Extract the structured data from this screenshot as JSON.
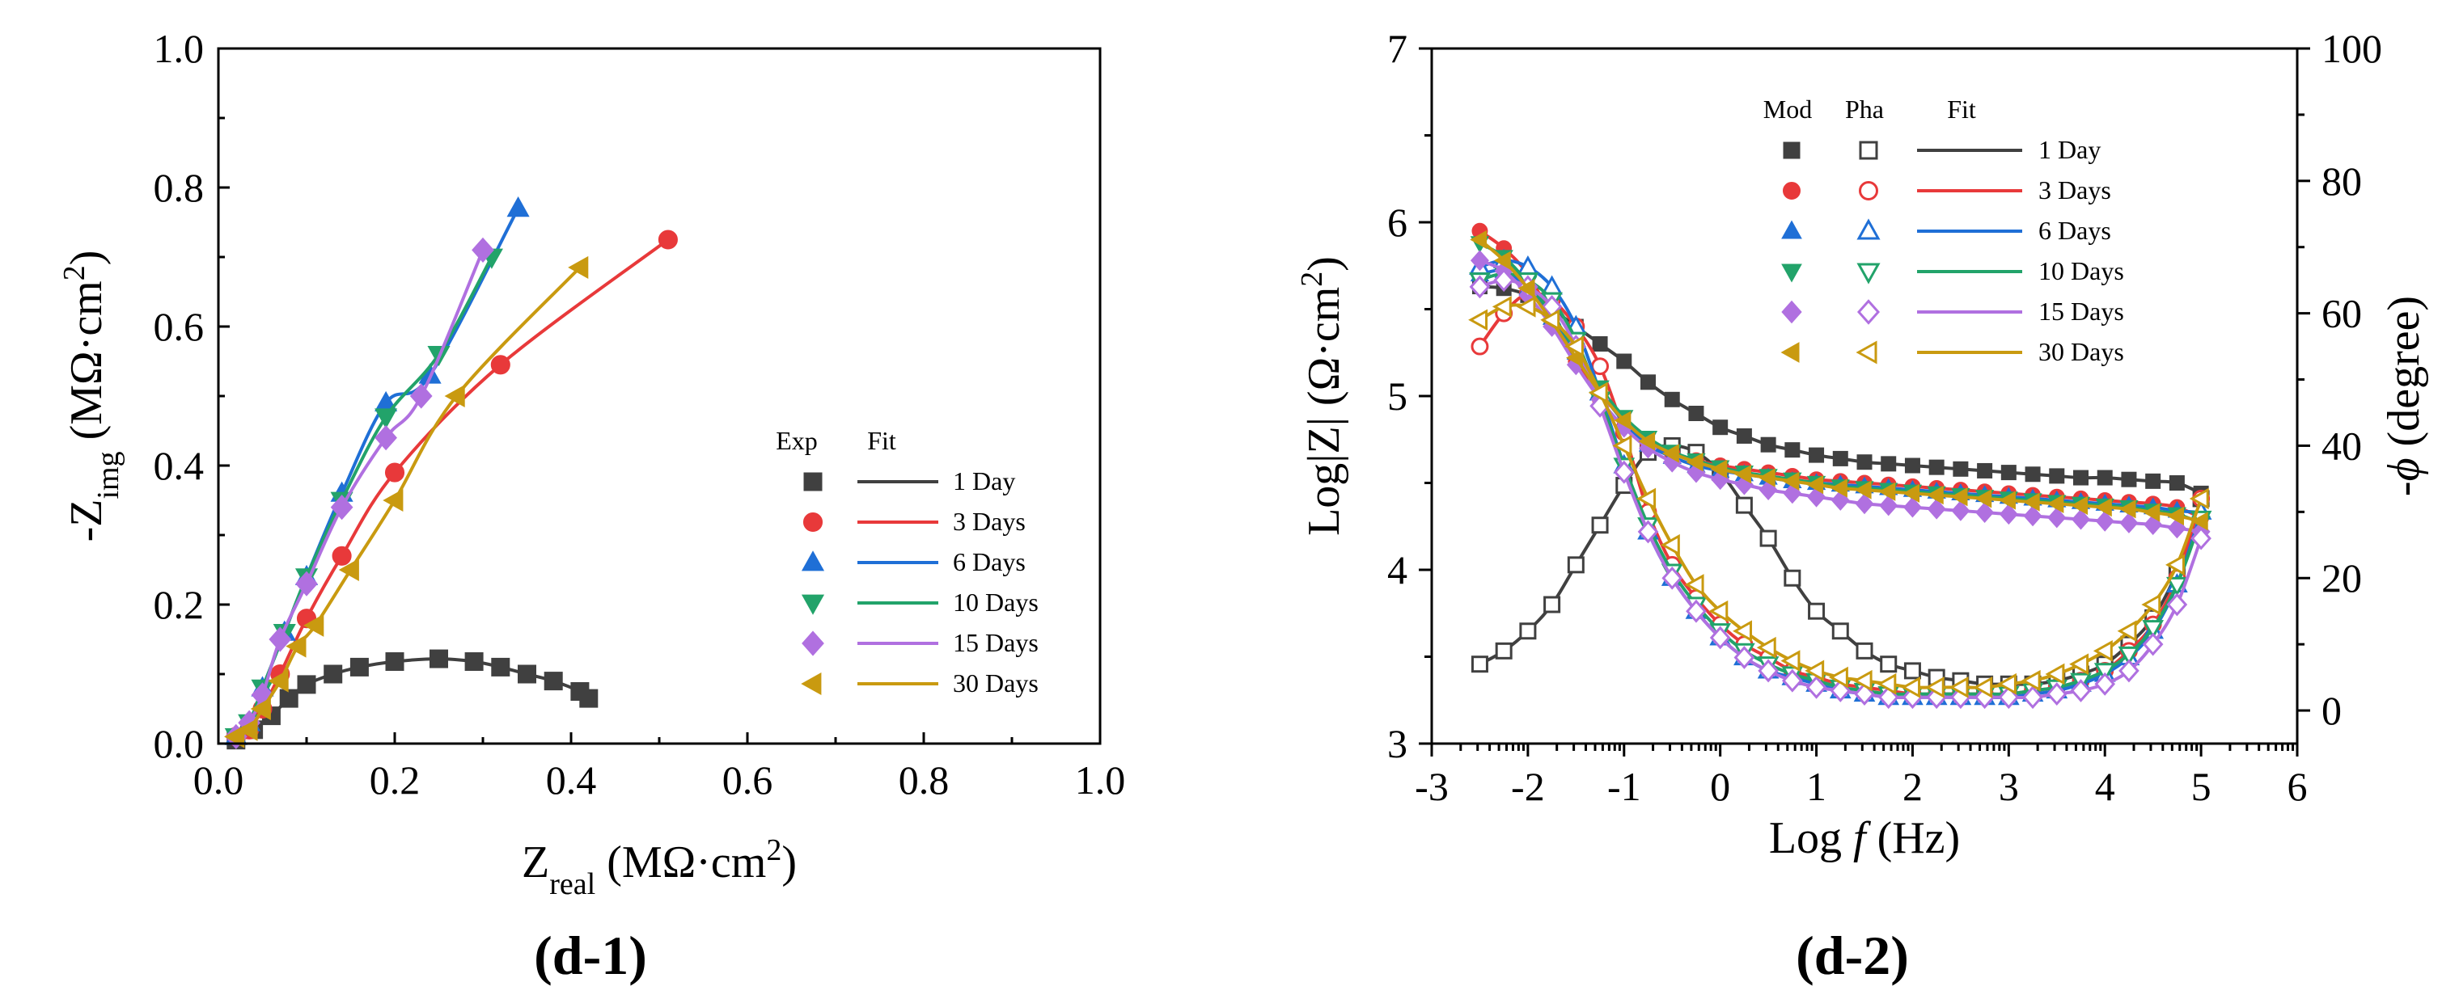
{
  "colors": {
    "d1": "#404040",
    "d3": "#e8393a",
    "d6": "#1f6fd6",
    "d10": "#22a36a",
    "d15": "#b070e0",
    "d30": "#c99a10"
  },
  "chart_data": [
    {
      "type": "scatter",
      "panel_label": "(d-1)",
      "xlabel": {
        "main": "Z",
        "sub": "real",
        "unit_pre": " (MΩ·cm",
        "sup": "2",
        "unit_post": ")"
      },
      "ylabel": {
        "main": "-Z",
        "sub": "img",
        "unit_pre": " (MΩ·cm",
        "sup": "2",
        "unit_post": ")"
      },
      "xlim": [
        0,
        1.0
      ],
      "ylim": [
        0,
        1.0
      ],
      "xticks": [
        "0.0",
        "0.2",
        "0.4",
        "0.6",
        "0.8",
        "1.0"
      ],
      "yticks": [
        "0.0",
        "0.2",
        "0.4",
        "0.6",
        "0.8",
        "1.0"
      ],
      "legend": {
        "headers": [
          "Exp",
          "Fit"
        ],
        "position": "center-right"
      },
      "series": [
        {
          "name": "1 Day",
          "marker": "square",
          "color_key": "d1",
          "x": [
            0.02,
            0.04,
            0.06,
            0.08,
            0.1,
            0.13,
            0.16,
            0.2,
            0.25,
            0.29,
            0.32,
            0.35,
            0.38,
            0.41,
            0.42
          ],
          "y": [
            0.005,
            0.02,
            0.04,
            0.065,
            0.085,
            0.1,
            0.11,
            0.118,
            0.122,
            0.118,
            0.11,
            0.1,
            0.09,
            0.075,
            0.065
          ]
        },
        {
          "name": "3 Days",
          "marker": "circle",
          "color_key": "d3",
          "x": [
            0.02,
            0.035,
            0.05,
            0.07,
            0.1,
            0.14,
            0.2,
            0.32,
            0.51
          ],
          "y": [
            0.01,
            0.02,
            0.05,
            0.1,
            0.18,
            0.27,
            0.39,
            0.545,
            0.725
          ]
        },
        {
          "name": "6 Days",
          "marker": "triangle-up",
          "color_key": "d6",
          "x": [
            0.02,
            0.035,
            0.05,
            0.075,
            0.1,
            0.14,
            0.19,
            0.24,
            0.34
          ],
          "y": [
            0.01,
            0.03,
            0.08,
            0.16,
            0.24,
            0.36,
            0.49,
            0.53,
            0.77
          ]
        },
        {
          "name": "10 Days",
          "marker": "triangle-down",
          "color_key": "d10",
          "x": [
            0.02,
            0.035,
            0.05,
            0.075,
            0.1,
            0.14,
            0.19,
            0.25,
            0.31
          ],
          "y": [
            0.01,
            0.03,
            0.08,
            0.16,
            0.24,
            0.35,
            0.47,
            0.56,
            0.7
          ]
        },
        {
          "name": "15 Days",
          "marker": "diamond",
          "color_key": "d15",
          "x": [
            0.02,
            0.035,
            0.05,
            0.07,
            0.1,
            0.14,
            0.19,
            0.23,
            0.3
          ],
          "y": [
            0.01,
            0.03,
            0.07,
            0.15,
            0.23,
            0.34,
            0.44,
            0.5,
            0.71
          ]
        },
        {
          "name": "30 Days",
          "marker": "triangle-left",
          "color_key": "d30",
          "x": [
            0.02,
            0.035,
            0.05,
            0.07,
            0.09,
            0.11,
            0.15,
            0.2,
            0.27,
            0.41
          ],
          "y": [
            0.01,
            0.02,
            0.05,
            0.09,
            0.14,
            0.17,
            0.25,
            0.35,
            0.5,
            0.685
          ]
        }
      ]
    },
    {
      "type": "line",
      "panel_label": "(d-2)",
      "xlabel": {
        "pre": "Log ",
        "italic": "f",
        "post": " (Hz)"
      },
      "ylabel": {
        "text_pre": "Log|Z| (Ω·cm",
        "sup": "2",
        "text_post": ")"
      },
      "y2label": {
        "pre": "-",
        "italic": "ϕ",
        "post": " (degree)"
      },
      "xlim": [
        -3,
        6
      ],
      "ylim": [
        3,
        7
      ],
      "y2lim": [
        -5,
        100
      ],
      "xticks": [
        "-3",
        "-2",
        "-1",
        "0",
        "1",
        "2",
        "3",
        "4",
        "5",
        "6"
      ],
      "yticks": [
        "3",
        "4",
        "5",
        "6",
        "7"
      ],
      "y2ticks": [
        "0",
        "20",
        "40",
        "60",
        "80",
        "100"
      ],
      "legend": {
        "headers": [
          "Mod",
          "Pha",
          "Fit"
        ],
        "position": "top-center"
      },
      "logf": [
        -2.5,
        -2.25,
        -2.0,
        -1.75,
        -1.5,
        -1.25,
        -1.0,
        -0.75,
        -0.5,
        -0.25,
        0.0,
        0.25,
        0.5,
        0.75,
        1.0,
        1.25,
        1.5,
        1.75,
        2.0,
        2.25,
        2.5,
        2.75,
        3.0,
        3.25,
        3.5,
        3.75,
        4.0,
        4.25,
        4.5,
        4.75,
        5.0
      ],
      "series": [
        {
          "name": "1 Day",
          "color_key": "d1",
          "marker": "square",
          "modulus": [
            5.63,
            5.62,
            5.58,
            5.5,
            5.4,
            5.3,
            5.2,
            5.08,
            4.98,
            4.9,
            4.82,
            4.77,
            4.72,
            4.69,
            4.66,
            4.64,
            4.62,
            4.61,
            4.6,
            4.59,
            4.58,
            4.57,
            4.56,
            4.55,
            4.54,
            4.53,
            4.53,
            4.52,
            4.51,
            4.5,
            4.44
          ],
          "phase": [
            7,
            9,
            12,
            16,
            22,
            28,
            34,
            39,
            40,
            39,
            36,
            31,
            26,
            20,
            15,
            12,
            9,
            7,
            6,
            5,
            4.5,
            4,
            4,
            4,
            4.5,
            5.5,
            7,
            10,
            14,
            21,
            32
          ]
        },
        {
          "name": "3 Days",
          "color_key": "d3",
          "marker": "circle",
          "modulus": [
            5.95,
            5.85,
            5.7,
            5.45,
            5.2,
            4.98,
            4.82,
            4.72,
            4.67,
            4.63,
            4.6,
            4.58,
            4.56,
            4.54,
            4.52,
            4.51,
            4.5,
            4.49,
            4.48,
            4.47,
            4.46,
            4.45,
            4.44,
            4.43,
            4.42,
            4.41,
            4.4,
            4.39,
            4.38,
            4.36,
            4.3
          ],
          "phase": [
            55,
            60,
            63,
            62,
            58,
            52,
            42,
            30,
            22,
            17,
            13,
            10,
            8,
            6,
            5,
            4,
            3.5,
            3,
            2.5,
            2.5,
            2.5,
            2.5,
            2.5,
            3,
            3.5,
            4.5,
            6,
            9,
            13,
            20,
            32
          ]
        },
        {
          "name": "6 Days",
          "color_key": "d6",
          "marker": "triangle-up",
          "modulus": [
            5.7,
            5.72,
            5.62,
            5.45,
            5.25,
            5.03,
            4.85,
            4.72,
            4.65,
            4.6,
            4.57,
            4.55,
            4.53,
            4.51,
            4.5,
            4.49,
            4.48,
            4.47,
            4.46,
            4.45,
            4.44,
            4.43,
            4.42,
            4.41,
            4.4,
            4.39,
            4.38,
            4.37,
            4.36,
            4.34,
            4.33
          ],
          "phase": [
            67,
            68,
            67,
            64,
            58,
            48,
            37,
            27,
            20,
            15,
            11,
            8,
            6,
            5,
            4,
            3,
            2.5,
            2,
            2,
            2,
            2,
            2,
            2,
            2.5,
            3,
            4,
            5.5,
            8,
            12,
            19,
            30
          ]
        },
        {
          "name": "10 Days",
          "color_key": "d10",
          "marker": "triangle-down",
          "modulus": [
            5.88,
            5.8,
            5.65,
            5.47,
            5.26,
            5.05,
            4.88,
            4.76,
            4.68,
            4.63,
            4.59,
            4.56,
            4.54,
            4.52,
            4.5,
            4.48,
            4.47,
            4.46,
            4.45,
            4.44,
            4.43,
            4.42,
            4.41,
            4.4,
            4.39,
            4.38,
            4.37,
            4.36,
            4.34,
            4.32,
            4.27
          ],
          "phase": [
            65,
            66,
            65,
            62,
            56,
            47,
            37,
            28,
            21,
            16,
            12,
            9,
            7,
            5.5,
            4.5,
            3.5,
            3,
            2.5,
            2.5,
            2.5,
            2.5,
            2.5,
            2.5,
            3,
            3.5,
            4.5,
            6,
            8.5,
            12.5,
            19,
            29
          ]
        },
        {
          "name": "15 Days",
          "color_key": "d15",
          "marker": "diamond",
          "modulus": [
            5.78,
            5.72,
            5.58,
            5.4,
            5.18,
            4.98,
            4.82,
            4.7,
            4.62,
            4.56,
            4.52,
            4.49,
            4.46,
            4.44,
            4.42,
            4.4,
            4.38,
            4.37,
            4.36,
            4.35,
            4.34,
            4.33,
            4.32,
            4.31,
            4.3,
            4.29,
            4.28,
            4.27,
            4.26,
            4.24,
            4.22
          ],
          "phase": [
            64,
            65,
            64,
            61,
            55,
            46,
            36,
            27,
            20,
            15,
            11,
            8,
            6,
            4.5,
            3.5,
            3,
            2.5,
            2,
            2,
            2,
            2,
            2,
            2,
            2,
            2.5,
            3,
            4,
            6,
            10,
            16,
            26
          ]
        },
        {
          "name": "30 Days",
          "color_key": "d30",
          "marker": "triangle-left",
          "modulus": [
            5.9,
            5.78,
            5.62,
            5.43,
            5.22,
            5.02,
            4.86,
            4.74,
            4.67,
            4.62,
            4.58,
            4.55,
            4.53,
            4.51,
            4.49,
            4.47,
            4.46,
            4.45,
            4.44,
            4.43,
            4.42,
            4.41,
            4.4,
            4.39,
            4.38,
            4.37,
            4.36,
            4.35,
            4.33,
            4.31,
            4.28
          ],
          "phase": [
            59,
            61,
            61,
            59,
            55,
            48,
            40,
            32,
            25,
            19,
            15,
            12,
            9.5,
            7.5,
            6,
            5,
            4.5,
            4,
            3.5,
            3.5,
            3.5,
            3.5,
            4,
            4.5,
            5.5,
            7,
            9,
            12,
            16,
            22,
            32
          ]
        }
      ]
    }
  ]
}
